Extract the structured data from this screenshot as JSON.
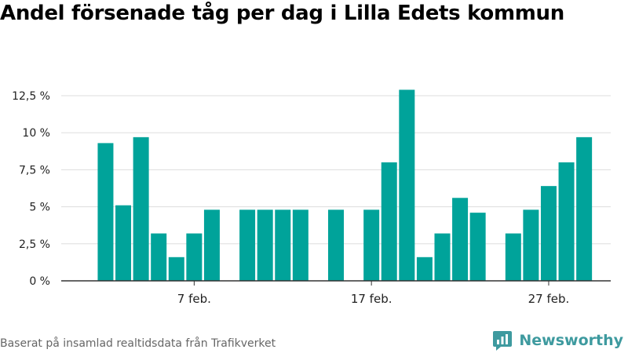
{
  "title": "Andel försenade tåg per dag i Lilla Edets kommun",
  "footer": {
    "source": "Baserat på insamlad realtidsdata från Trafikverket",
    "brand": "Newsworthy",
    "brand_icon": "bar-chart-logo-icon"
  },
  "colors": {
    "bar": "#00a39a",
    "grid": "#dddddd",
    "axis": "#333333",
    "brand": "#3e9a9f"
  },
  "chart_data": {
    "type": "bar",
    "title": "Andel försenade tåg per dag i Lilla Edets kommun",
    "xlabel": "",
    "ylabel": "",
    "x_ticks": [
      {
        "day": 7,
        "label": "7 feb."
      },
      {
        "day": 17,
        "label": "17 feb."
      },
      {
        "day": 27,
        "label": "27 feb."
      }
    ],
    "y_ticks": [
      {
        "value": 0,
        "label": "0 %"
      },
      {
        "value": 2.5,
        "label": "2,5 %"
      },
      {
        "value": 5,
        "label": "5 %"
      },
      {
        "value": 7.5,
        "label": "7,5 %"
      },
      {
        "value": 10,
        "label": "10 %"
      },
      {
        "value": 12.5,
        "label": "12,5 %"
      }
    ],
    "ylim": [
      0,
      12.5
    ],
    "xlim_days": [
      -0.5,
      30.5
    ],
    "grid": true,
    "legend": "none",
    "points": [
      {
        "day": 2,
        "value": 9.3
      },
      {
        "day": 3,
        "value": 5.1
      },
      {
        "day": 4,
        "value": 9.7
      },
      {
        "day": 5,
        "value": 3.2
      },
      {
        "day": 6,
        "value": 1.6
      },
      {
        "day": 7,
        "value": 3.2
      },
      {
        "day": 8,
        "value": 4.8
      },
      {
        "day": 10,
        "value": 4.8
      },
      {
        "day": 11,
        "value": 4.8
      },
      {
        "day": 12,
        "value": 4.8
      },
      {
        "day": 13,
        "value": 4.8
      },
      {
        "day": 15,
        "value": 4.8
      },
      {
        "day": 17,
        "value": 4.8
      },
      {
        "day": 18,
        "value": 8.0
      },
      {
        "day": 19,
        "value": 12.9
      },
      {
        "day": 20,
        "value": 1.6
      },
      {
        "day": 21,
        "value": 3.2
      },
      {
        "day": 22,
        "value": 5.6
      },
      {
        "day": 23,
        "value": 4.6
      },
      {
        "day": 25,
        "value": 3.2
      },
      {
        "day": 26,
        "value": 4.8
      },
      {
        "day": 27,
        "value": 6.4
      },
      {
        "day": 28,
        "value": 8.0
      },
      {
        "day": 29,
        "value": 9.7
      }
    ]
  }
}
